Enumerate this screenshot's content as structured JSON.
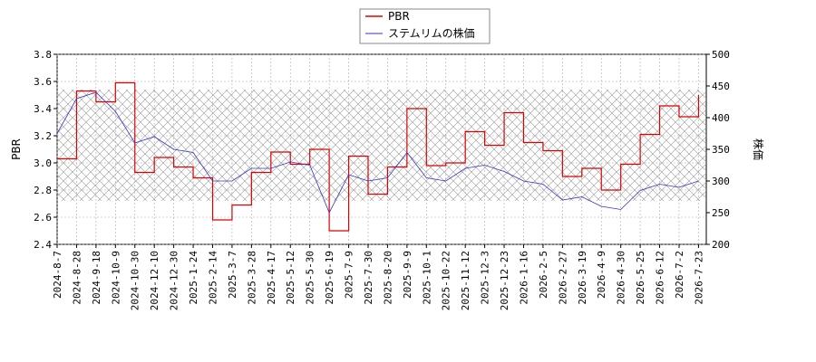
{
  "chart_data": {
    "type": "line",
    "title": "",
    "legend_position": "top-center",
    "grid": true,
    "band_hatched": true,
    "x_tick_labels": [
      "2024-8-7",
      "2024-8-28",
      "2024-9-18",
      "2024-10-9",
      "2024-10-30",
      "2024-12-10",
      "2024-12-30",
      "2025-1-24",
      "2025-2-14",
      "2025-3-7",
      "2025-3-28",
      "2025-4-17",
      "2025-5-12",
      "2025-5-30",
      "2025-6-19",
      "2025-7-9",
      "2025-7-30",
      "2025-8-20",
      "2025-9-9",
      "2025-10-1",
      "2025-10-22",
      "2025-11-12",
      "2025-12-3",
      "2025-12-23",
      "2026-1-16",
      "2026-2-5",
      "2026-2-27",
      "2026-3-19",
      "2026-4-9",
      "2026-4-30",
      "2026-5-25",
      "2026-6-12",
      "2026-7-2",
      "2026-7-23"
    ],
    "y_left": {
      "label": "PBR",
      "min": 2.4,
      "max": 3.8,
      "ticks": [
        "2.4",
        "2.6",
        "2.8",
        "3.0",
        "3.2",
        "3.4",
        "3.6",
        "3.8"
      ]
    },
    "y_right": {
      "label": "株価",
      "min": 200,
      "max": 500,
      "ticks": [
        "200",
        "250",
        "300",
        "350",
        "400",
        "450",
        "500"
      ]
    },
    "series": [
      {
        "name": "PBR",
        "color": "#dd0000",
        "axis": "left",
        "x": [
          0,
          1,
          2,
          3,
          4,
          5,
          6,
          7,
          8,
          9,
          10,
          11,
          12,
          13,
          14,
          15,
          16,
          17,
          18,
          19,
          20,
          21,
          22,
          23,
          24,
          25,
          26,
          27,
          28,
          29,
          30,
          31,
          32,
          33
        ],
        "values": [
          3.03,
          3.53,
          3.45,
          3.59,
          2.93,
          3.04,
          2.97,
          2.89,
          2.58,
          2.69,
          2.93,
          3.08,
          2.99,
          3.1,
          2.5,
          3.05,
          2.77,
          2.97,
          3.4,
          2.98,
          3.0,
          3.23,
          3.13,
          3.37,
          3.15,
          3.09,
          2.9,
          2.96,
          2.8,
          2.99,
          3.21,
          3.42,
          3.34,
          3.5
        ]
      },
      {
        "name": "ステムリムの株価",
        "color": "#3333cc",
        "axis": "right",
        "x": [
          0,
          1,
          2,
          3,
          4,
          5,
          6,
          7,
          8,
          9,
          10,
          11,
          12,
          13,
          14,
          15,
          16,
          17,
          18,
          19,
          20,
          21,
          22,
          23,
          24,
          25,
          26,
          27,
          28,
          29,
          30,
          31,
          32,
          33
        ],
        "values": [
          375,
          430,
          440,
          410,
          360,
          370,
          350,
          345,
          300,
          300,
          320,
          320,
          330,
          325,
          250,
          310,
          300,
          305,
          345,
          305,
          300,
          320,
          325,
          315,
          300,
          295,
          270,
          275,
          260,
          255,
          285,
          295,
          290,
          300
        ]
      }
    ]
  }
}
